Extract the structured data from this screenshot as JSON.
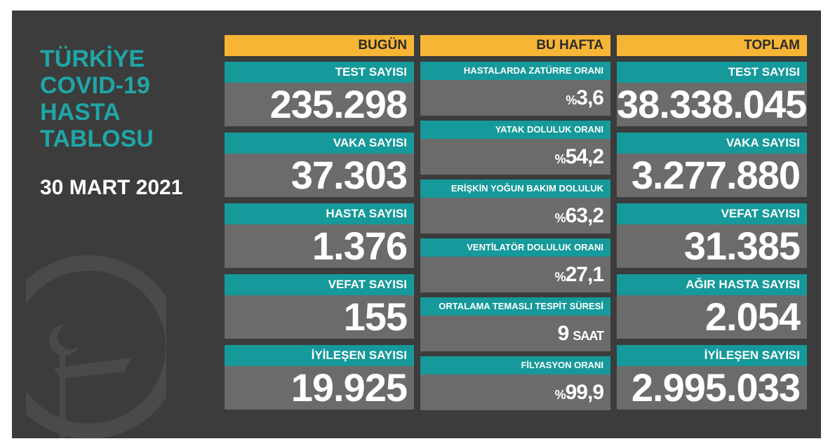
{
  "header": {
    "title": [
      "TÜRKİYE",
      "COVID-19",
      "HASTA",
      "TABLOSU"
    ],
    "date": "30 MART 2021"
  },
  "columns": [
    {
      "heading": "BUGÜN",
      "items": [
        {
          "label": "TEST SAYISI",
          "value": "235.298"
        },
        {
          "label": "VAKA SAYISI",
          "value": "37.303"
        },
        {
          "label": "HASTA SAYISI",
          "value": "1.376"
        },
        {
          "label": "VEFAT SAYISI",
          "value": "155"
        },
        {
          "label": "İYİLEŞEN SAYISI",
          "value": "19.925"
        }
      ]
    },
    {
      "heading": "BU HAFTA",
      "items": [
        {
          "label": "HASTALARDA ZATÜRRE ORANI",
          "prefix": "%",
          "value": "3,6"
        },
        {
          "label": "YATAK DOLULUK ORANI",
          "prefix": "%",
          "value": "54,2"
        },
        {
          "label": "ERİŞKİN YOĞUN BAKIM DOLULUK ORANI",
          "prefix": "%",
          "value": "63,2"
        },
        {
          "label": "VENTİLATÖR DOLULUK ORANI",
          "prefix": "%",
          "value": "27,1"
        },
        {
          "label": "ORTALAMA TEMASLI TESPİT SÜRESİ",
          "value": "9",
          "suffix": "SAAT"
        },
        {
          "label": "FİLYASYON ORANI",
          "prefix": "%",
          "value": "99,9"
        }
      ]
    },
    {
      "heading": "TOPLAM",
      "items": [
        {
          "label": "TEST SAYISI",
          "value": "38.338.045"
        },
        {
          "label": "VAKA SAYISI",
          "value": "3.277.880"
        },
        {
          "label": "VEFAT SAYISI",
          "value": "31.385"
        },
        {
          "label": "AĞIR HASTA SAYISI",
          "value": "2.054"
        },
        {
          "label": "İYİLEŞEN SAYISI",
          "value": "2.995.033"
        }
      ]
    }
  ]
}
